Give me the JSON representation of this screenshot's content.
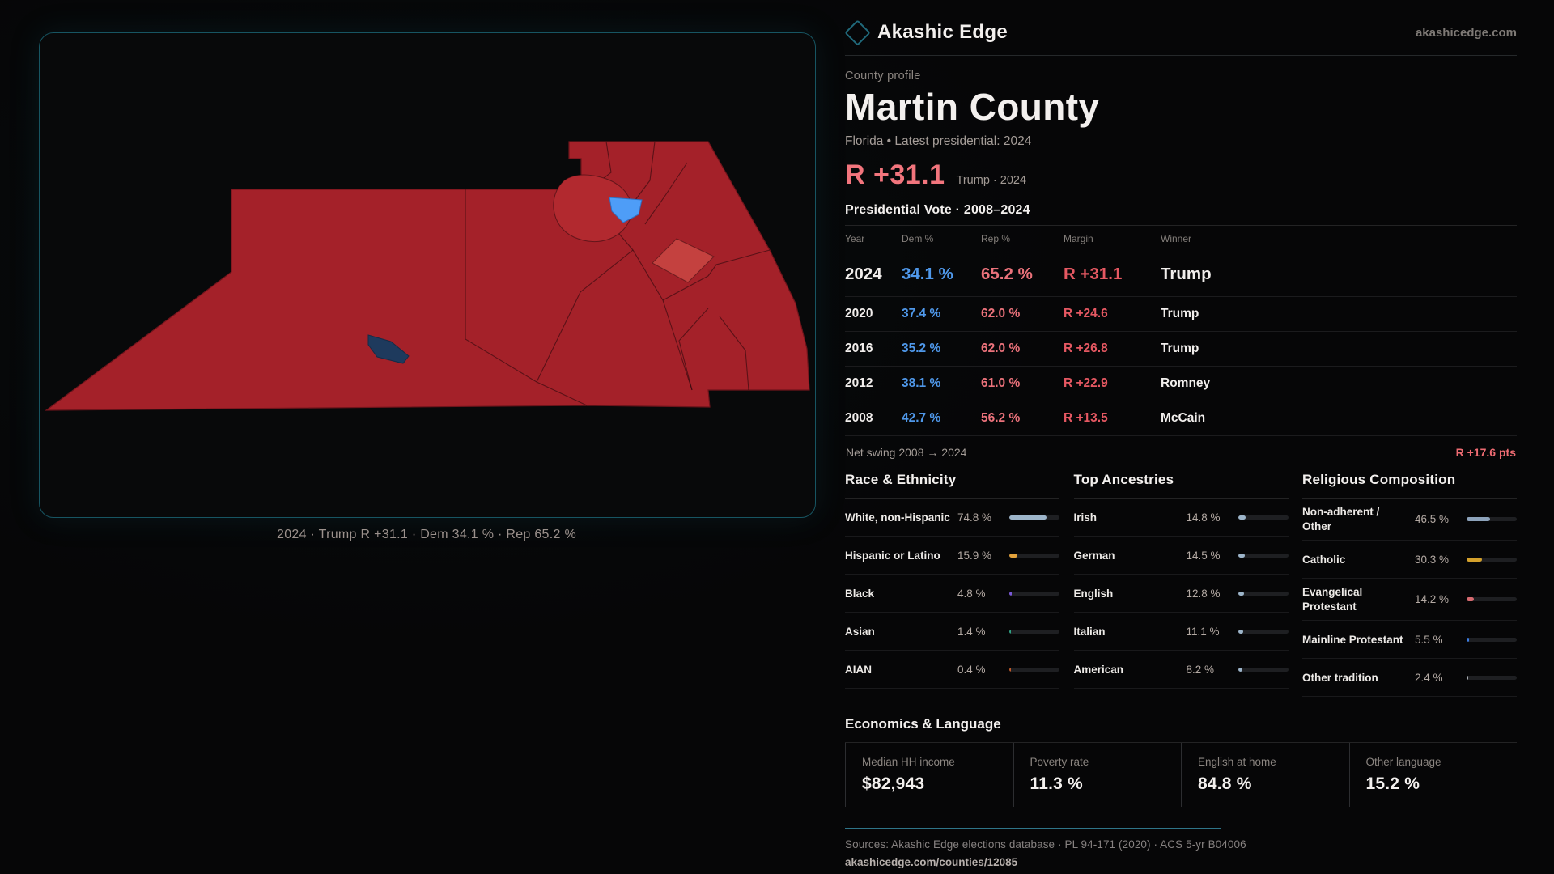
{
  "brand": {
    "name": "Akashic Edge",
    "site": "akashicedge.com"
  },
  "header": {
    "eyebrow": "County profile",
    "title": "Martin County",
    "subtitle": "Florida • Latest presidential: 2024"
  },
  "headline": {
    "margin": "R +31.1",
    "context": "Trump · 2024"
  },
  "table": {
    "title": "Presidential Vote · 2008–2024",
    "columns": [
      "Year",
      "Dem %",
      "Rep %",
      "Margin",
      "Winner"
    ],
    "rows": [
      {
        "year": "2024",
        "dem": "34.1 %",
        "rep": "65.2 %",
        "margin": "R +31.1",
        "winner": "Trump",
        "highlight": true
      },
      {
        "year": "2020",
        "dem": "37.4 %",
        "rep": "62.0 %",
        "margin": "R +24.6",
        "winner": "Trump",
        "highlight": false
      },
      {
        "year": "2016",
        "dem": "35.2 %",
        "rep": "62.0 %",
        "margin": "R +26.8",
        "winner": "Trump",
        "highlight": false
      },
      {
        "year": "2012",
        "dem": "38.1 %",
        "rep": "61.0 %",
        "margin": "R +22.9",
        "winner": "Romney",
        "highlight": false
      },
      {
        "year": "2008",
        "dem": "42.7 %",
        "rep": "56.2 %",
        "margin": "R +13.5",
        "winner": "McCain",
        "highlight": false
      }
    ],
    "net_swing_label": "Net swing 2008 → 2024",
    "net_swing_value": "R +17.6 pts"
  },
  "sections": [
    {
      "title": "Race & Ethnicity",
      "rows": [
        {
          "label": "White, non-Hispanic",
          "value": "74.8 %",
          "pct": 74.8,
          "color": "#9db5ca"
        },
        {
          "label": "Hispanic or Latino",
          "value": "15.9 %",
          "pct": 15.9,
          "color": "#e3a23c"
        },
        {
          "label": "Black",
          "value": "4.8 %",
          "pct": 4.8,
          "color": "#7a58d8"
        },
        {
          "label": "Asian",
          "value": "1.4 %",
          "pct": 1.4,
          "color": "#2fa183"
        },
        {
          "label": "AIAN",
          "value": "0.4 %",
          "pct": 0.4,
          "color": "#bf5a2a"
        }
      ]
    },
    {
      "title": "Top Ancestries",
      "rows": [
        {
          "label": "Irish",
          "value": "14.8 %",
          "pct": 14.8,
          "color": "#9db5ca"
        },
        {
          "label": "German",
          "value": "14.5 %",
          "pct": 14.5,
          "color": "#9db5ca"
        },
        {
          "label": "English",
          "value": "12.8 %",
          "pct": 12.8,
          "color": "#9db5ca"
        },
        {
          "label": "Italian",
          "value": "11.1 %",
          "pct": 11.1,
          "color": "#9db5ca"
        },
        {
          "label": "American",
          "value": "8.2 %",
          "pct": 8.2,
          "color": "#9db5ca"
        }
      ]
    },
    {
      "title": "Religious Composition",
      "rows": [
        {
          "label": "Non-adherent / Other",
          "value": "46.5 %",
          "pct": 46.5,
          "color": "#8da3bb"
        },
        {
          "label": "Catholic",
          "value": "30.3 %",
          "pct": 30.3,
          "color": "#d4a12c"
        },
        {
          "label": "Evangelical Protestant",
          "value": "14.2 %",
          "pct": 14.2,
          "color": "#d76a70"
        },
        {
          "label": "Mainline Protestant",
          "value": "5.5 %",
          "pct": 5.5,
          "color": "#3b7de4"
        },
        {
          "label": "Other tradition",
          "value": "2.4 %",
          "pct": 2.4,
          "color": "#a9adb3"
        }
      ]
    }
  ],
  "economics": {
    "title": "Economics & Language",
    "stats": [
      {
        "label": "Median HH income",
        "value": "$82,943"
      },
      {
        "label": "Poverty rate",
        "value": "11.3 %"
      },
      {
        "label": "English at home",
        "value": "84.8 %"
      },
      {
        "label": "Other language",
        "value": "15.2 %"
      }
    ]
  },
  "footer": {
    "sources": "Sources: Akashic Edge elections database · PL 94-171 (2020) · ACS 5-yr B04006",
    "link": "akashicedge.com/counties/12085"
  },
  "map": {
    "caption": "2024 · Trump R +31.1 · Dem 34.1 % · Rep 65.2 %",
    "colors": {
      "county_red": "#a42129",
      "cluster_red": "#b2292f",
      "light_red": "#c4413f",
      "dem_blue_precinct": "#4e9df7",
      "navy_precinct": "#1e3a5d",
      "panel_border_teal": "#175562"
    }
  }
}
